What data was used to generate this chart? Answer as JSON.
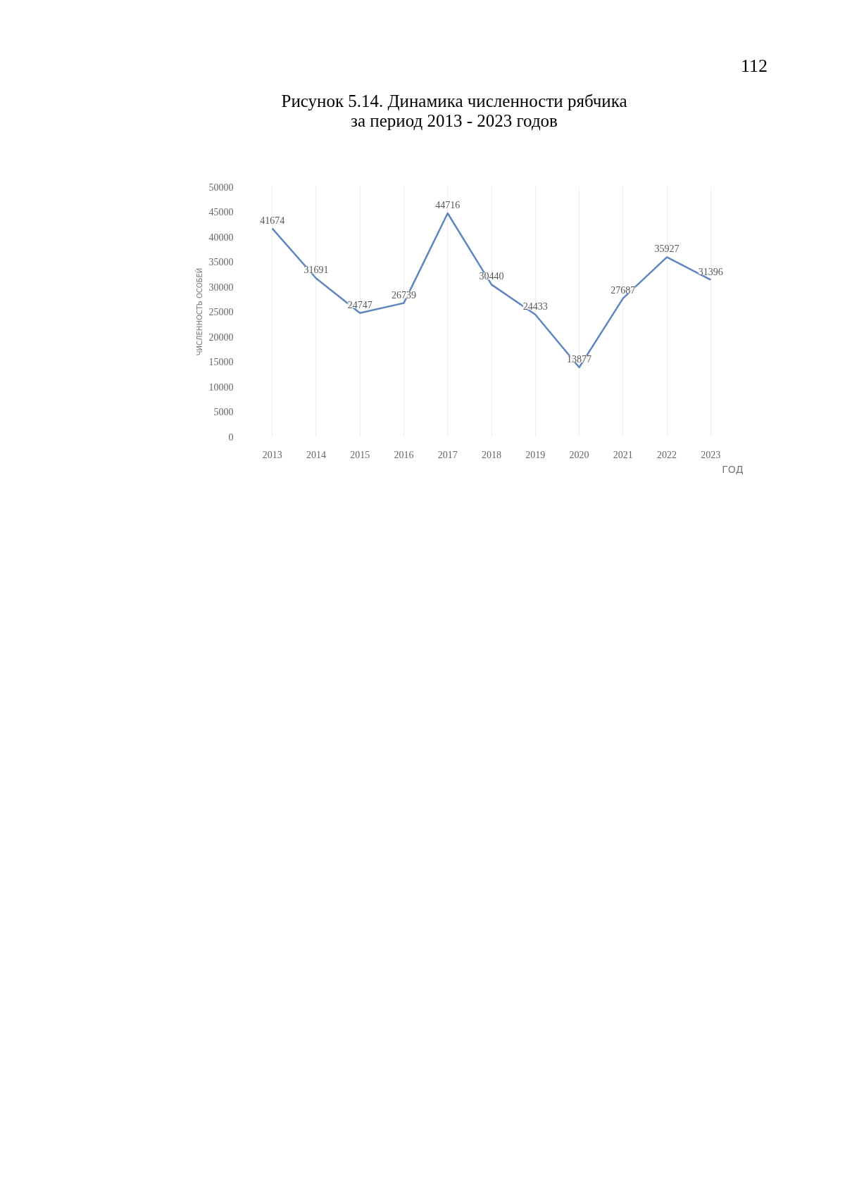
{
  "chart_data": {
    "type": "line",
    "title": "Рисунок 5.14. Динамика численности рябчика\nза период 2013 - 2023 годов",
    "xlabel": "ГОД",
    "ylabel": "ЧИСЛЕННОСТЬ ОСОБЕЙ",
    "annotations": [
      "112"
    ],
    "categories": [
      "2013",
      "2014",
      "2015",
      "2016",
      "2017",
      "2018",
      "2019",
      "2020",
      "2021",
      "2022",
      "2023"
    ],
    "series": [
      {
        "color": "#5f86c0",
        "values": [
          41674,
          31691,
          24747,
          26739,
          44716,
          30440,
          24433,
          13877,
          27687,
          35927,
          31396
        ]
      }
    ],
    "ylim": [
      0,
      50000
    ],
    "yticks": [
      0,
      5000,
      10000,
      15000,
      20000,
      25000,
      30000,
      35000,
      40000,
      45000,
      50000
    ],
    "grid": "x",
    "data_labels": true,
    "marker": "none",
    "line_style": "solid"
  }
}
